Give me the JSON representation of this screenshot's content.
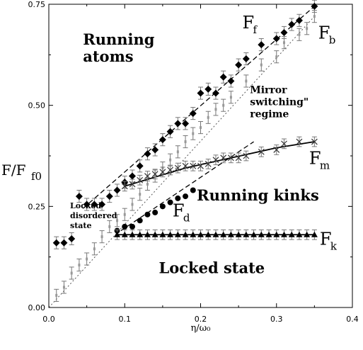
{
  "chart_data": {
    "type": "scatter",
    "xlim": [
      0,
      0.4
    ],
    "ylim": [
      0,
      0.75
    ],
    "x_ticks": [
      "0.0",
      "0.1",
      "0.2",
      "0.3",
      "0.4"
    ],
    "y_ticks": [
      "0.00",
      "0.25",
      "0.50",
      "0.75"
    ],
    "xlabel": "η/ω₀",
    "ylabel": "F/F",
    "ylabel_sub": "f0",
    "grid": false,
    "region_labels": [
      {
        "lines": [
          "Running",
          "atoms"
        ],
        "x": 0.045,
        "y": 0.65,
        "style": "big"
      },
      {
        "lines": [
          "Mirror",
          "switching\"",
          "regime"
        ],
        "x": 0.265,
        "y": 0.53,
        "style": "mid"
      },
      {
        "lines": [
          "Running kinks"
        ],
        "x": 0.195,
        "y": 0.265,
        "style": "big"
      },
      {
        "lines": [
          "Locked state"
        ],
        "x": 0.145,
        "y": 0.085,
        "style": "big"
      },
      {
        "lines": [
          "Locked",
          "disordered",
          "state"
        ],
        "x": 0.028,
        "y": 0.245,
        "style": "small"
      }
    ],
    "curve_labels": [
      {
        "main": "F",
        "sub": "f",
        "x": 0.255,
        "y": 0.69
      },
      {
        "main": "F",
        "sub": "b",
        "x": 0.355,
        "y": 0.665
      },
      {
        "main": "F",
        "sub": "m",
        "x": 0.343,
        "y": 0.355
      },
      {
        "main": "F",
        "sub": "d",
        "x": 0.163,
        "y": 0.225
      },
      {
        "main": "F",
        "sub": "k",
        "x": 0.357,
        "y": 0.155
      }
    ],
    "series": [
      {
        "name": "F_f",
        "marker": "diamond",
        "error": 0.015,
        "x": [
          0.01,
          0.02,
          0.03,
          0.04,
          0.05,
          0.06,
          0.07,
          0.08,
          0.09,
          0.1,
          0.11,
          0.12,
          0.13,
          0.14,
          0.15,
          0.16,
          0.17,
          0.18,
          0.19,
          0.2,
          0.21,
          0.22,
          0.23,
          0.24,
          0.25,
          0.26,
          0.28,
          0.3,
          0.31,
          0.32,
          0.33,
          0.35
        ],
        "y": [
          0.16,
          0.16,
          0.17,
          0.275,
          0.255,
          0.255,
          0.255,
          0.275,
          0.29,
          0.31,
          0.325,
          0.35,
          0.38,
          0.39,
          0.415,
          0.435,
          0.455,
          0.455,
          0.48,
          0.53,
          0.54,
          0.53,
          0.57,
          0.56,
          0.6,
          0.615,
          0.65,
          0.665,
          0.68,
          0.7,
          0.71,
          0.745
        ]
      },
      {
        "name": "F_b",
        "marker": "bar",
        "error": 0.015,
        "x": [
          0.01,
          0.02,
          0.03,
          0.04,
          0.05,
          0.06,
          0.07,
          0.08,
          0.09,
          0.1,
          0.11,
          0.12,
          0.13,
          0.14,
          0.15,
          0.16,
          0.17,
          0.18,
          0.19,
          0.2,
          0.21,
          0.22,
          0.23,
          0.24,
          0.26,
          0.28,
          0.3,
          0.31,
          0.33,
          0.34,
          0.35
        ],
        "y": [
          0.03,
          0.05,
          0.085,
          0.105,
          0.12,
          0.145,
          0.175,
          0.2,
          0.215,
          0.23,
          0.255,
          0.28,
          0.305,
          0.325,
          0.345,
          0.365,
          0.385,
          0.41,
          0.43,
          0.445,
          0.47,
          0.49,
          0.5,
          0.52,
          0.56,
          0.6,
          0.62,
          0.655,
          0.675,
          0.69,
          0.72
        ]
      },
      {
        "name": "F_m",
        "marker": "cross",
        "error": 0.012,
        "x": [
          0.1,
          0.11,
          0.12,
          0.13,
          0.14,
          0.15,
          0.16,
          0.17,
          0.18,
          0.19,
          0.2,
          0.21,
          0.22,
          0.23,
          0.24,
          0.25,
          0.26,
          0.28,
          0.3,
          0.31,
          0.33,
          0.35
        ],
        "y": [
          0.3,
          0.305,
          0.315,
          0.325,
          0.33,
          0.335,
          0.34,
          0.345,
          0.35,
          0.35,
          0.35,
          0.355,
          0.365,
          0.37,
          0.37,
          0.37,
          0.375,
          0.385,
          0.39,
          0.405,
          0.41,
          0.41
        ]
      },
      {
        "name": "F_d",
        "marker": "circle",
        "error": 0.0,
        "x": [
          0.09,
          0.1,
          0.11,
          0.12,
          0.13,
          0.14,
          0.15,
          0.16,
          0.17,
          0.18,
          0.19
        ],
        "y": [
          0.19,
          0.2,
          0.2,
          0.215,
          0.23,
          0.235,
          0.25,
          0.26,
          0.27,
          0.275,
          0.29
        ]
      },
      {
        "name": "F_k",
        "marker": "triangle",
        "error": 0.012,
        "x": [
          0.09,
          0.1,
          0.11,
          0.12,
          0.13,
          0.14,
          0.15,
          0.16,
          0.17,
          0.18,
          0.19,
          0.2,
          0.21,
          0.22,
          0.23,
          0.24,
          0.25,
          0.26,
          0.27,
          0.28,
          0.29,
          0.3,
          0.31,
          0.32,
          0.33,
          0.34,
          0.35
        ],
        "y": [
          0.18,
          0.18,
          0.18,
          0.18,
          0.18,
          0.18,
          0.18,
          0.18,
          0.18,
          0.18,
          0.18,
          0.18,
          0.18,
          0.18,
          0.18,
          0.18,
          0.18,
          0.18,
          0.18,
          0.18,
          0.18,
          0.18,
          0.18,
          0.18,
          0.18,
          0.18,
          0.18
        ]
      }
    ],
    "lines": [
      {
        "name": "F_f_fit",
        "style": "dashed",
        "points": [
          [
            0.045,
            0.245
          ],
          [
            0.35,
            0.745
          ]
        ]
      },
      {
        "name": "F_b_fit",
        "style": "dotted",
        "points": [
          [
            0.0,
            0.0
          ],
          [
            0.35,
            0.72
          ]
        ]
      },
      {
        "name": "F_m_fit",
        "style": "solid",
        "points": [
          [
            0.1,
            0.3
          ],
          [
            0.18,
            0.345
          ],
          [
            0.24,
            0.37
          ],
          [
            0.3,
            0.395
          ],
          [
            0.35,
            0.41
          ]
        ]
      },
      {
        "name": "F_d_fit",
        "style": "dashed",
        "points": [
          [
            0.095,
            0.19
          ],
          [
            0.27,
            0.41
          ]
        ]
      },
      {
        "name": "F_k_fit",
        "style": "solid",
        "points": [
          [
            0.09,
            0.18
          ],
          [
            0.35,
            0.18
          ]
        ]
      }
    ]
  }
}
